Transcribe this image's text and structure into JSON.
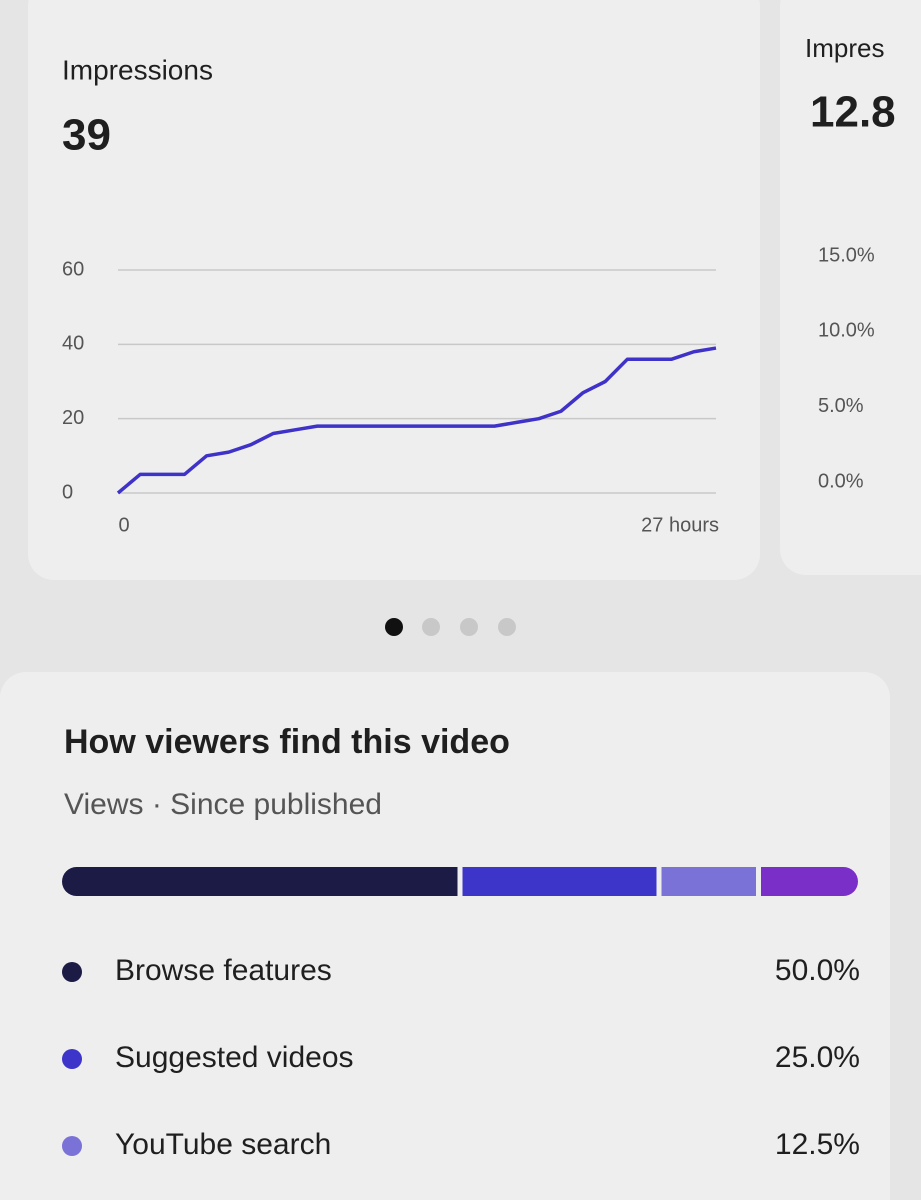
{
  "impressions_card": {
    "title": "Impressions",
    "value": "39",
    "chart": {
      "type": "line",
      "color": "#3f32c8",
      "x": [
        0,
        1,
        2,
        3,
        4,
        5,
        6,
        7,
        8,
        9,
        10,
        11,
        12,
        13,
        14,
        15,
        16,
        17,
        18,
        19,
        20,
        21,
        22,
        23,
        24,
        25,
        26,
        27
      ],
      "values": [
        0,
        5,
        5,
        5,
        10,
        11,
        13,
        16,
        17,
        18,
        18,
        18,
        18,
        18,
        18,
        18,
        18,
        18,
        19,
        20,
        22,
        27,
        30,
        36,
        36,
        36,
        38,
        39
      ],
      "xlim": [
        0,
        27
      ],
      "xticks": [
        0,
        {
          "value": 27,
          "label": "27 hours"
        }
      ],
      "ylim": [
        0,
        60
      ],
      "yticks": [
        0,
        20,
        40,
        60
      ],
      "grid": true
    }
  },
  "second_card": {
    "title": "Impres",
    "value": "12.8",
    "chart": {
      "type": "line",
      "ylim": [
        0,
        15
      ],
      "yticks": [
        {
          "value": 0,
          "label": "0.0%"
        },
        {
          "value": 5,
          "label": "5.0%"
        },
        {
          "value": 10,
          "label": "10.0%"
        },
        {
          "value": 15,
          "label": "15.0%"
        }
      ]
    }
  },
  "traffic_card": {
    "title": "How viewers find this video",
    "subtitle": "Views · Since published",
    "chart": {
      "type": "stacked-bar",
      "series": [
        {
          "name": "Browse features",
          "color": "#1c1b46",
          "values": [
            50
          ],
          "value_labels": [
            "50.0%"
          ]
        },
        {
          "name": "Suggested videos",
          "color": "#3d35c9",
          "values": [
            25
          ],
          "value_labels": [
            "25.0%"
          ]
        },
        {
          "name": "YouTube search",
          "color": "#7b72d8",
          "values": [
            12.5
          ],
          "value_labels": [
            "12.5%"
          ]
        },
        {
          "name": null,
          "color": "#7a2fc9",
          "values": [
            12.5
          ],
          "value_labels": [
            null
          ]
        }
      ]
    }
  }
}
